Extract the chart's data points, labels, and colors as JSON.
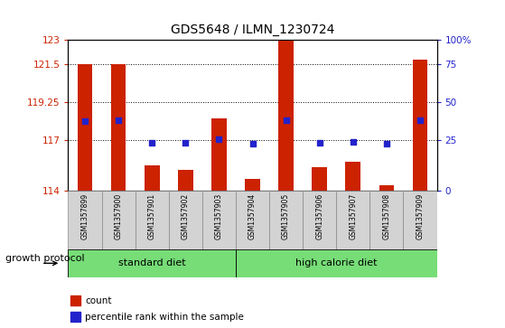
{
  "title": "GDS5648 / ILMN_1230724",
  "samples": [
    "GSM1357899",
    "GSM1357900",
    "GSM1357901",
    "GSM1357902",
    "GSM1357903",
    "GSM1357904",
    "GSM1357905",
    "GSM1357906",
    "GSM1357907",
    "GSM1357908",
    "GSM1357909"
  ],
  "counts": [
    121.5,
    121.5,
    115.5,
    115.2,
    118.3,
    114.7,
    122.9,
    115.4,
    115.7,
    114.3,
    121.8
  ],
  "percentile_ranks": [
    118.15,
    118.2,
    116.85,
    116.82,
    117.05,
    116.78,
    118.2,
    116.82,
    116.87,
    116.76,
    118.2
  ],
  "ymin": 114,
  "ymax": 123,
  "yticks": [
    114,
    117,
    119.25,
    121.5,
    123
  ],
  "ytick_labels": [
    "114",
    "117",
    "119.25",
    "121.5",
    "123"
  ],
  "right_yticks": [
    0,
    25,
    50,
    75,
    100
  ],
  "right_ytick_positions": [
    114,
    117,
    119.25,
    121.5,
    123
  ],
  "right_ytick_labels": [
    "0",
    "25",
    "50",
    "75",
    "100%"
  ],
  "bar_color": "#cc2200",
  "dot_color": "#2222cc",
  "standard_diet_indices": [
    0,
    1,
    2,
    3,
    4
  ],
  "high_calorie_diet_indices": [
    5,
    6,
    7,
    8,
    9,
    10
  ],
  "standard_diet_label": "standard diet",
  "high_calorie_diet_label": "high calorie diet",
  "group_label": "growth protocol",
  "legend_count_label": "count",
  "legend_percentile_label": "percentile rank within the sample",
  "bar_width": 0.45,
  "sample_bg_color": "#d3d3d3",
  "diet_color": "#77dd77",
  "tick_label_color_left": "#cc2200",
  "tick_label_color_right": "#2222cc"
}
